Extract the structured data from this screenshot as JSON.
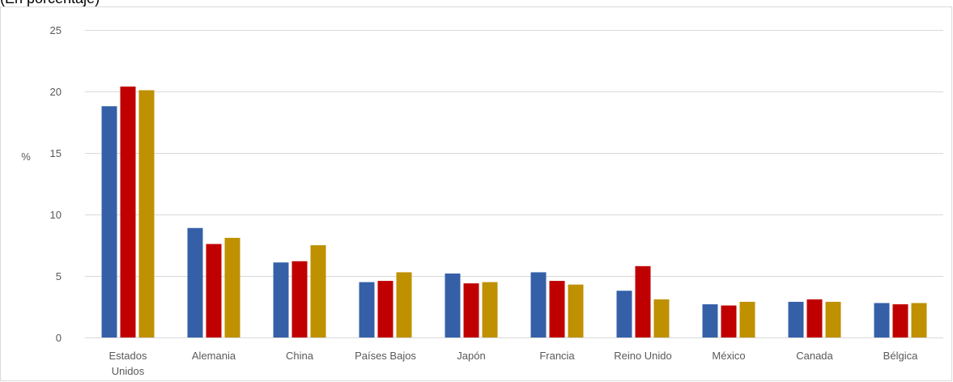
{
  "caption": "(En porcentaje)",
  "colors": {
    "series1": "#3560A8",
    "series2": "#C00000",
    "series3": "#BF9000",
    "grid": "#D9D9D9",
    "text": "#595959"
  },
  "chart_data": {
    "type": "bar",
    "ylabel": "%",
    "ylim": [
      0,
      25
    ],
    "yticks": [
      0,
      5,
      10,
      15,
      20,
      25
    ],
    "grid": true,
    "categories": [
      "Estados Unidos",
      "Alemania",
      "China",
      "Países Bajos",
      "Japón",
      "Francia",
      "Reino Unido",
      "México",
      "Canada",
      "Bélgica"
    ],
    "category_lines": [
      [
        "Estados",
        "Unidos"
      ],
      [
        "Alemania"
      ],
      [
        "China"
      ],
      [
        "Países Bajos"
      ],
      [
        "Japón"
      ],
      [
        "Francia"
      ],
      [
        "Reino Unido"
      ],
      [
        "México"
      ],
      [
        "Canada"
      ],
      [
        "Bélgica"
      ]
    ],
    "series": [
      {
        "values": [
          18.8,
          8.9,
          6.1,
          4.5,
          5.2,
          5.3,
          3.8,
          2.7,
          2.9,
          2.8
        ]
      },
      {
        "values": [
          20.4,
          7.6,
          6.2,
          4.6,
          4.4,
          4.6,
          5.8,
          2.6,
          3.1,
          2.7
        ]
      },
      {
        "values": [
          20.1,
          8.1,
          7.5,
          5.3,
          4.5,
          4.3,
          3.1,
          2.9,
          2.9,
          2.8
        ]
      }
    ]
  }
}
